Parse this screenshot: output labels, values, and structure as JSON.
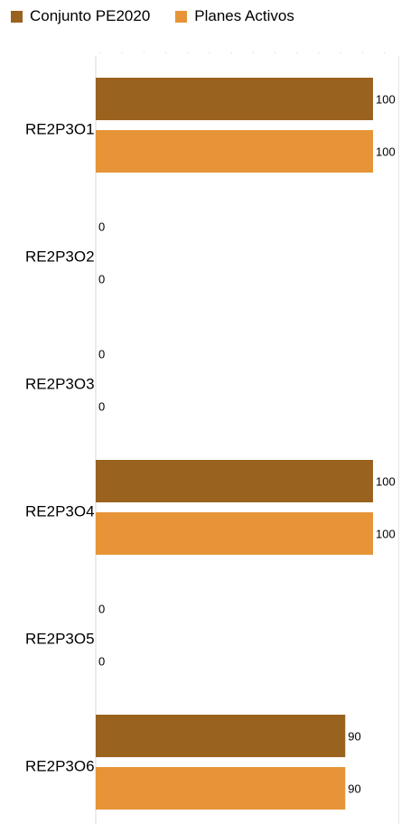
{
  "chart_data": {
    "type": "bar",
    "orientation": "horizontal",
    "categories": [
      "RE2P3O1",
      "RE2P3O2",
      "RE2P3O3",
      "RE2P3O4",
      "RE2P3O5",
      "RE2P3O6"
    ],
    "series": [
      {
        "name": "Conjunto PE2020",
        "values": [
          100,
          0,
          0,
          100,
          0,
          90
        ],
        "color": "#9a621f"
      },
      {
        "name": "Planes Activos",
        "values": [
          100,
          0,
          0,
          100,
          0,
          90
        ],
        "color": "#e69437"
      }
    ],
    "xlim": [
      0,
      100
    ],
    "grid": true,
    "legend_position": "top-left"
  }
}
